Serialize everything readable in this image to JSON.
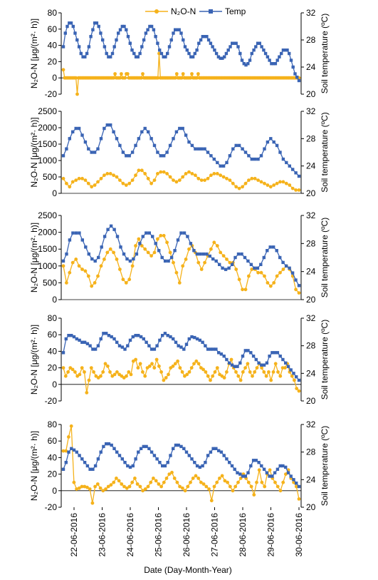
{
  "legend": {
    "n2o_label": "N₂O-N",
    "temp_label": "Temp"
  },
  "colors": {
    "n2o": "#F5B21B",
    "temp": "#3A64B4"
  },
  "xlabel": "Date (Day-Month-Year)",
  "x_ticks": [
    "22-06-2016",
    "23-06-2016",
    "24-06-2016",
    "25-06-2016",
    "26-06-2016",
    "27-06-2016",
    "28-06-2016",
    "29-06-2016",
    "30-06-2016"
  ],
  "chart_data": [
    {
      "type": "line",
      "ylabel_left": "N₂O-N [μg/(m²· h)]",
      "ylabel_right": "Soil temperature (ºC)",
      "ylim_left": [
        -20,
        80
      ],
      "yticks_left": [
        "-20",
        "0",
        "20",
        "40",
        "60",
        "80"
      ],
      "ylim_right": [
        20,
        32
      ],
      "yticks_right": [
        "20",
        "24",
        "28",
        "32"
      ],
      "series": [
        {
          "name": "N₂O-N",
          "axis": "left",
          "values": [
            10,
            0,
            0,
            0,
            0,
            0,
            0,
            0,
            0,
            0,
            0,
            -20,
            0,
            0,
            0,
            0,
            0,
            0,
            0,
            0,
            0,
            0,
            0,
            0,
            0,
            0,
            0,
            0,
            0,
            0,
            0,
            0,
            0,
            0,
            0,
            0,
            0,
            0,
            0,
            0,
            0,
            5,
            0,
            0,
            0,
            0,
            5,
            0,
            0,
            0,
            5,
            5,
            0,
            0,
            0,
            0,
            0,
            0,
            0,
            0,
            0,
            0,
            0,
            5,
            0,
            0,
            0,
            0,
            0,
            0,
            0,
            0,
            0,
            0,
            0,
            0,
            30,
            0,
            0,
            0,
            0,
            0,
            0,
            0,
            0,
            0,
            0,
            0,
            0,
            0,
            5,
            0,
            0,
            0,
            0,
            5,
            0,
            0,
            0,
            0,
            0,
            0,
            5,
            0,
            0,
            0,
            0,
            5,
            0,
            0,
            0,
            0,
            0,
            0,
            0,
            0,
            0,
            0,
            0,
            0,
            0,
            0,
            0,
            0,
            0,
            0,
            0,
            0,
            0,
            0,
            0,
            0,
            0,
            0,
            0,
            0,
            0,
            0,
            0,
            0,
            0,
            0,
            0,
            0,
            0,
            0,
            0,
            0,
            0,
            0,
            0,
            0,
            0,
            0,
            0,
            0,
            0,
            0,
            0,
            0,
            0,
            0,
            0,
            0,
            0,
            0,
            0,
            0,
            0,
            0,
            0,
            0,
            0,
            0,
            0,
            0,
            0,
            0,
            0,
            0,
            0,
            0,
            0,
            0,
            0,
            0,
            0,
            0
          ]
        },
        {
          "name": "Temp",
          "axis": "right",
          "values": [
            27,
            29,
            30,
            30.5,
            30.5,
            30,
            29,
            28,
            27,
            26,
            25.5,
            25.5,
            26,
            27,
            28.5,
            29.5,
            30.5,
            30.5,
            30,
            29,
            28,
            27,
            26,
            25.5,
            25.5,
            26,
            27,
            28,
            29,
            29.5,
            30,
            30,
            29.5,
            28.5,
            27.5,
            26.5,
            26,
            25.5,
            25.5,
            26,
            27,
            28,
            29,
            29.5,
            30,
            30,
            29.5,
            28.5,
            27.5,
            26.5,
            26,
            25.5,
            25.5,
            26,
            27,
            28,
            29,
            29.5,
            29.5,
            29.5,
            29,
            28,
            27,
            26.5,
            26,
            25.5,
            25.5,
            26,
            26.5,
            27.5,
            28,
            28.5,
            28.5,
            28.5,
            28,
            27.5,
            27,
            26.5,
            26,
            25.5,
            25.3,
            25.3,
            25.5,
            26,
            26.5,
            27,
            27.5,
            27.5,
            27.5,
            27,
            26,
            25,
            24.5,
            24.3,
            24.5,
            25,
            26,
            26.5,
            27,
            27.5,
            27.5,
            27,
            26.5,
            26,
            25.5,
            25,
            24.5,
            24.5,
            24.5,
            25,
            25.5,
            26,
            26.5,
            26.5,
            26.5,
            26,
            25,
            24,
            23,
            22.5,
            22
          ]
        }
      ]
    },
    {
      "type": "line",
      "ylabel_left": "N₂O-N [μg/(m²· h)]",
      "ylabel_right": "Soil temperature (ºC)",
      "ylim_left": [
        0,
        2500
      ],
      "yticks_left": [
        "0",
        "500",
        "1000",
        "1500",
        "2000",
        "2500"
      ],
      "ylim_right": [
        20,
        32
      ],
      "yticks_right": [
        "20",
        "24",
        "28",
        "32"
      ],
      "series": [
        {
          "name": "N₂O-N",
          "axis": "left",
          "values": [
            450,
            300,
            200,
            350,
            400,
            450,
            450,
            400,
            300,
            200,
            250,
            350,
            450,
            550,
            600,
            600,
            550,
            500,
            400,
            300,
            250,
            300,
            400,
            550,
            700,
            700,
            600,
            450,
            300,
            400,
            600,
            650,
            650,
            600,
            500,
            400,
            350,
            400,
            500,
            600,
            650,
            600,
            550,
            450,
            400,
            400,
            450,
            550,
            600,
            600,
            550,
            500,
            450,
            400,
            300,
            200,
            150,
            200,
            300,
            400,
            450,
            450,
            400,
            350,
            300,
            250,
            200,
            250,
            300,
            350,
            350,
            300,
            250,
            150,
            100,
            100
          ]
        },
        {
          "name": "Temp",
          "axis": "right",
          "values": [
            25.5,
            26.5,
            28,
            29,
            29.5,
            29.5,
            28.5,
            27.5,
            26.5,
            26,
            26,
            26.5,
            28,
            29.5,
            30,
            30,
            29,
            28,
            27,
            26,
            25.5,
            25.5,
            26,
            27,
            28,
            29,
            29.5,
            29,
            28,
            27,
            26,
            25.5,
            25.5,
            26,
            27,
            28,
            29,
            29.5,
            29.5,
            28.5,
            27.5,
            27,
            26.5,
            26.5,
            26.5,
            26.5,
            26,
            25.5,
            25,
            24.5,
            24,
            24,
            24.5,
            25.5,
            26.5,
            27,
            27,
            26.5,
            26,
            25.5,
            25,
            25,
            25,
            25.5,
            26.5,
            27.5,
            28,
            27.5,
            27,
            26,
            25,
            24.5,
            24,
            23.5,
            23,
            22.5
          ]
        }
      ]
    },
    {
      "type": "line",
      "ylabel_left": "N₂O-N [μg/(m²· h)]",
      "ylabel_right": "Soil temperature (ºC)",
      "ylim_left": [
        0,
        2500
      ],
      "yticks_left": [
        "0",
        "500",
        "1000",
        "1500",
        "2000",
        "2500"
      ],
      "ylim_right": [
        20,
        32
      ],
      "yticks_right": [
        "20",
        "24",
        "28",
        "32"
      ],
      "series": [
        {
          "name": "N₂O-N",
          "axis": "left",
          "values": [
            1000,
            500,
            800,
            1100,
            1200,
            1000,
            900,
            850,
            700,
            400,
            500,
            700,
            1000,
            1200,
            1400,
            1500,
            1400,
            1200,
            900,
            600,
            500,
            600,
            1000,
            1600,
            1800,
            1600,
            1500,
            1400,
            1300,
            1400,
            1800,
            1900,
            1900,
            1700,
            1400,
            1100,
            800,
            500,
            1000,
            1200,
            1500,
            1600,
            1400,
            1100,
            900,
            1100,
            1300,
            1500,
            1700,
            1600,
            1400,
            1300,
            1200,
            1100,
            1100,
            900,
            600,
            300,
            300,
            700,
            900,
            900,
            800,
            800,
            700,
            500,
            400,
            500,
            700,
            800,
            900,
            1000,
            900,
            700,
            300,
            200
          ]
        },
        {
          "name": "Temp",
          "axis": "right",
          "values": [
            25.5,
            26.5,
            28.5,
            29.5,
            29.5,
            29.5,
            28.5,
            27.5,
            26.5,
            25.8,
            25.5,
            26,
            27.5,
            29,
            30,
            30.5,
            30,
            29,
            27.5,
            26.5,
            25.8,
            25.5,
            25.8,
            26.5,
            28,
            29,
            29.5,
            29.5,
            29,
            28,
            27,
            26,
            25.5,
            25.5,
            26,
            27,
            28.5,
            29.5,
            29.5,
            29,
            28,
            27,
            26.5,
            26.5,
            26.5,
            26.5,
            26.2,
            25.8,
            25.5,
            25,
            24.5,
            24.3,
            24.5,
            25,
            26,
            26.5,
            26.5,
            26,
            25.5,
            25,
            24.5,
            24.5,
            25,
            26,
            27,
            27.5,
            27.5,
            27,
            26,
            25.3,
            24.8,
            24.5,
            23.8,
            22.8,
            22
          ]
        }
      ]
    },
    {
      "type": "line",
      "ylabel_left": "N₂O-N [μg/(m²· h)]",
      "ylabel_right": "Soil temperature (ºC)",
      "ylim_left": [
        -20,
        80
      ],
      "yticks_left": [
        "-20",
        "0",
        "20",
        "40",
        "60",
        "80"
      ],
      "ylim_right": [
        20,
        32
      ],
      "yticks_right": [
        "20",
        "24",
        "28",
        "32"
      ],
      "series": [
        {
          "name": "N₂O-N",
          "axis": "left",
          "values": [
            20,
            10,
            15,
            20,
            18,
            15,
            10,
            12,
            20,
            15,
            -10,
            5,
            20,
            15,
            10,
            8,
            10,
            15,
            25,
            22,
            15,
            10,
            12,
            15,
            12,
            10,
            8,
            10,
            15,
            12,
            28,
            30,
            20,
            25,
            15,
            10,
            20,
            22,
            25,
            20,
            30,
            22,
            15,
            5,
            8,
            12,
            20,
            22,
            25,
            28,
            20,
            15,
            10,
            12,
            15,
            20,
            25,
            28,
            25,
            20,
            18,
            15,
            10,
            5,
            10,
            15,
            20,
            12,
            10,
            8,
            15,
            25,
            30,
            20,
            15,
            10,
            5,
            15,
            20,
            25,
            15,
            10,
            15,
            20,
            25,
            20,
            15,
            10,
            15,
            5,
            15,
            25,
            15,
            10,
            20,
            20,
            25,
            15,
            10,
            5,
            -5,
            -8
          ]
        },
        {
          "name": "Temp",
          "axis": "right",
          "values": [
            27,
            29,
            29.5,
            29.5,
            29.3,
            29,
            28.8,
            28.5,
            28.5,
            28.3,
            28,
            27.5,
            27.5,
            28,
            29,
            29.8,
            29.8,
            29.5,
            29.3,
            29,
            28.5,
            28,
            27.8,
            27.5,
            28,
            28.8,
            29.3,
            29.5,
            29.5,
            29.3,
            29,
            28.5,
            28,
            27.5,
            27.5,
            28,
            28.8,
            29.5,
            29.8,
            29.5,
            29.3,
            29,
            28.5,
            28,
            27.8,
            27.5,
            28.2,
            29,
            29.3,
            29.2,
            29,
            28.8,
            28.5,
            28,
            27.5,
            27.5,
            27.5,
            27.5,
            27,
            26.8,
            26.5,
            26,
            25.5,
            25.2,
            25,
            25,
            25.5,
            26.5,
            27.3,
            27.3,
            27,
            26.5,
            26,
            25.5,
            25.2,
            25.2,
            25.5,
            26.5,
            27,
            27,
            27,
            26.5,
            26,
            25.5,
            25,
            24.5,
            24,
            23.5,
            23
          ]
        }
      ]
    },
    {
      "type": "line",
      "ylabel_left": "N₂O-N [μg/(m²· h)]",
      "ylabel_right": "Soil temperature (ºC)",
      "ylim_left": [
        -20,
        80
      ],
      "yticks_left": [
        "-20",
        "0",
        "20",
        "40",
        "60",
        "80"
      ],
      "ylim_right": [
        20,
        32
      ],
      "yticks_right": [
        "20",
        "24",
        "28",
        "32"
      ],
      "series": [
        {
          "name": "N₂O-N",
          "axis": "left",
          "values": [
            48,
            48,
            65,
            78,
            10,
            2,
            3,
            5,
            5,
            4,
            2,
            -15,
            5,
            8,
            3,
            0,
            2,
            5,
            7,
            10,
            15,
            12,
            8,
            5,
            3,
            5,
            10,
            15,
            8,
            5,
            0,
            2,
            5,
            10,
            15,
            12,
            8,
            5,
            10,
            15,
            20,
            22,
            15,
            10,
            5,
            3,
            0,
            5,
            10,
            15,
            18,
            15,
            10,
            8,
            5,
            2,
            -12,
            5,
            10,
            15,
            18,
            12,
            10,
            5,
            0,
            5,
            10,
            15,
            20,
            15,
            10,
            5,
            -5,
            10,
            25,
            10,
            5,
            20,
            25,
            15,
            10,
            5,
            0,
            10,
            20,
            25,
            15,
            10,
            5,
            -10
          ]
        },
        {
          "name": "Temp",
          "axis": "right",
          "values": [
            25.5,
            26.5,
            28,
            28.5,
            28.3,
            28,
            27.5,
            27,
            26.5,
            26,
            25.5,
            25.5,
            26,
            27,
            28,
            28.8,
            29.2,
            29.2,
            29,
            28.5,
            28,
            27.5,
            27,
            26.5,
            26,
            25.8,
            26,
            27,
            28,
            28.5,
            28.8,
            28.8,
            28.5,
            28,
            27.5,
            27,
            26.5,
            26,
            26,
            26.5,
            27.5,
            28.5,
            29,
            29,
            28.8,
            28.5,
            28,
            27.5,
            27,
            26.5,
            26,
            25.8,
            26,
            26.5,
            27.5,
            28,
            28.5,
            28.5,
            28.2,
            28,
            27.5,
            27,
            26.5,
            26,
            25.5,
            25,
            24.8,
            24.5,
            24.5,
            25,
            26,
            26.8,
            26.8,
            26.5,
            26,
            25.5,
            25,
            24.5,
            24.5,
            25,
            25.5,
            26,
            26,
            25.8,
            25,
            24.5,
            24,
            23.5,
            23
          ]
        }
      ]
    }
  ]
}
